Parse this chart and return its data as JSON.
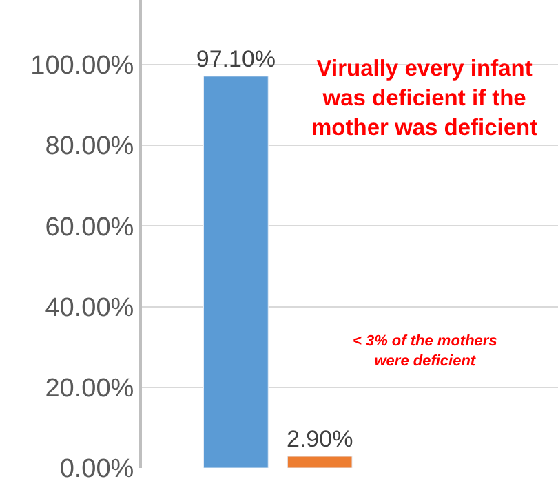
{
  "chart_data": {
    "type": "bar",
    "categories": [
      null
    ],
    "series": [
      {
        "color": "#5b9bd5",
        "values": [
          97.1
        ],
        "value_labels": [
          "97.10%"
        ]
      },
      {
        "color": "#ed7d31",
        "values": [
          2.9
        ],
        "value_labels": [
          "2.90%"
        ]
      }
    ],
    "ylim": [
      0,
      116
    ],
    "yticks": [
      {
        "value": 0,
        "label": "0.00%"
      },
      {
        "value": 20,
        "label": "20.00%"
      },
      {
        "value": 40,
        "label": "40.00%"
      },
      {
        "value": 60,
        "label": "60.00%"
      },
      {
        "value": 80,
        "label": "80.00%"
      },
      {
        "value": 100,
        "label": "100.00%"
      }
    ],
    "grid": "y",
    "legend": false,
    "tick_labels": "y",
    "annotations": [
      "Virually every infant was deficient if the mother was deficient",
      "< 3% of the mothers were deficient"
    ]
  }
}
